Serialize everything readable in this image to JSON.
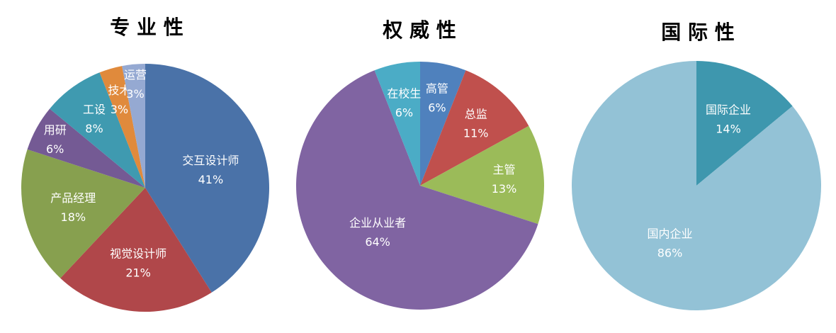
{
  "chart_data": [
    {
      "type": "pie",
      "title": "专 业 性",
      "slices": [
        {
          "label": "交互设计师",
          "value": 41,
          "value_label": "41%",
          "color": "#4A72A8"
        },
        {
          "label": "视觉设计师",
          "value": 21,
          "value_label": "21%",
          "color": "#B0474A"
        },
        {
          "label": "产品经理",
          "value": 18,
          "value_label": "18%",
          "color": "#87A04F"
        },
        {
          "label": "用研",
          "value": 6,
          "value_label": "6%",
          "color": "#745A94"
        },
        {
          "label": "工设",
          "value": 8,
          "value_label": "8%",
          "color": "#3F9AB0"
        },
        {
          "label": "技术",
          "value": 3,
          "value_label": "3%",
          "color": "#E08A3C"
        },
        {
          "label": "运营",
          "value": 3,
          "value_label": "3%",
          "color": "#95A9D2"
        }
      ]
    },
    {
      "type": "pie",
      "title": "权 威 性",
      "slices": [
        {
          "label": "高管",
          "value": 6,
          "value_label": "6%",
          "color": "#4F81BD"
        },
        {
          "label": "总监",
          "value": 11,
          "value_label": "11%",
          "color": "#C0504D"
        },
        {
          "label": "主管",
          "value": 13,
          "value_label": "13%",
          "color": "#9BBB59"
        },
        {
          "label": "企业从业者",
          "value": 64,
          "value_label": "64%",
          "color": "#8064A2"
        },
        {
          "label": "在校生",
          "value": 6,
          "value_label": "6%",
          "color": "#4BACC6"
        }
      ]
    },
    {
      "type": "pie",
      "title": "国 际 性",
      "slices": [
        {
          "label": "国际企业",
          "value": 14,
          "value_label": "14%",
          "color": "#3E97AE"
        },
        {
          "label": "国内企业",
          "value": 86,
          "value_label": "86%",
          "color": "#93C2D6"
        }
      ]
    }
  ]
}
